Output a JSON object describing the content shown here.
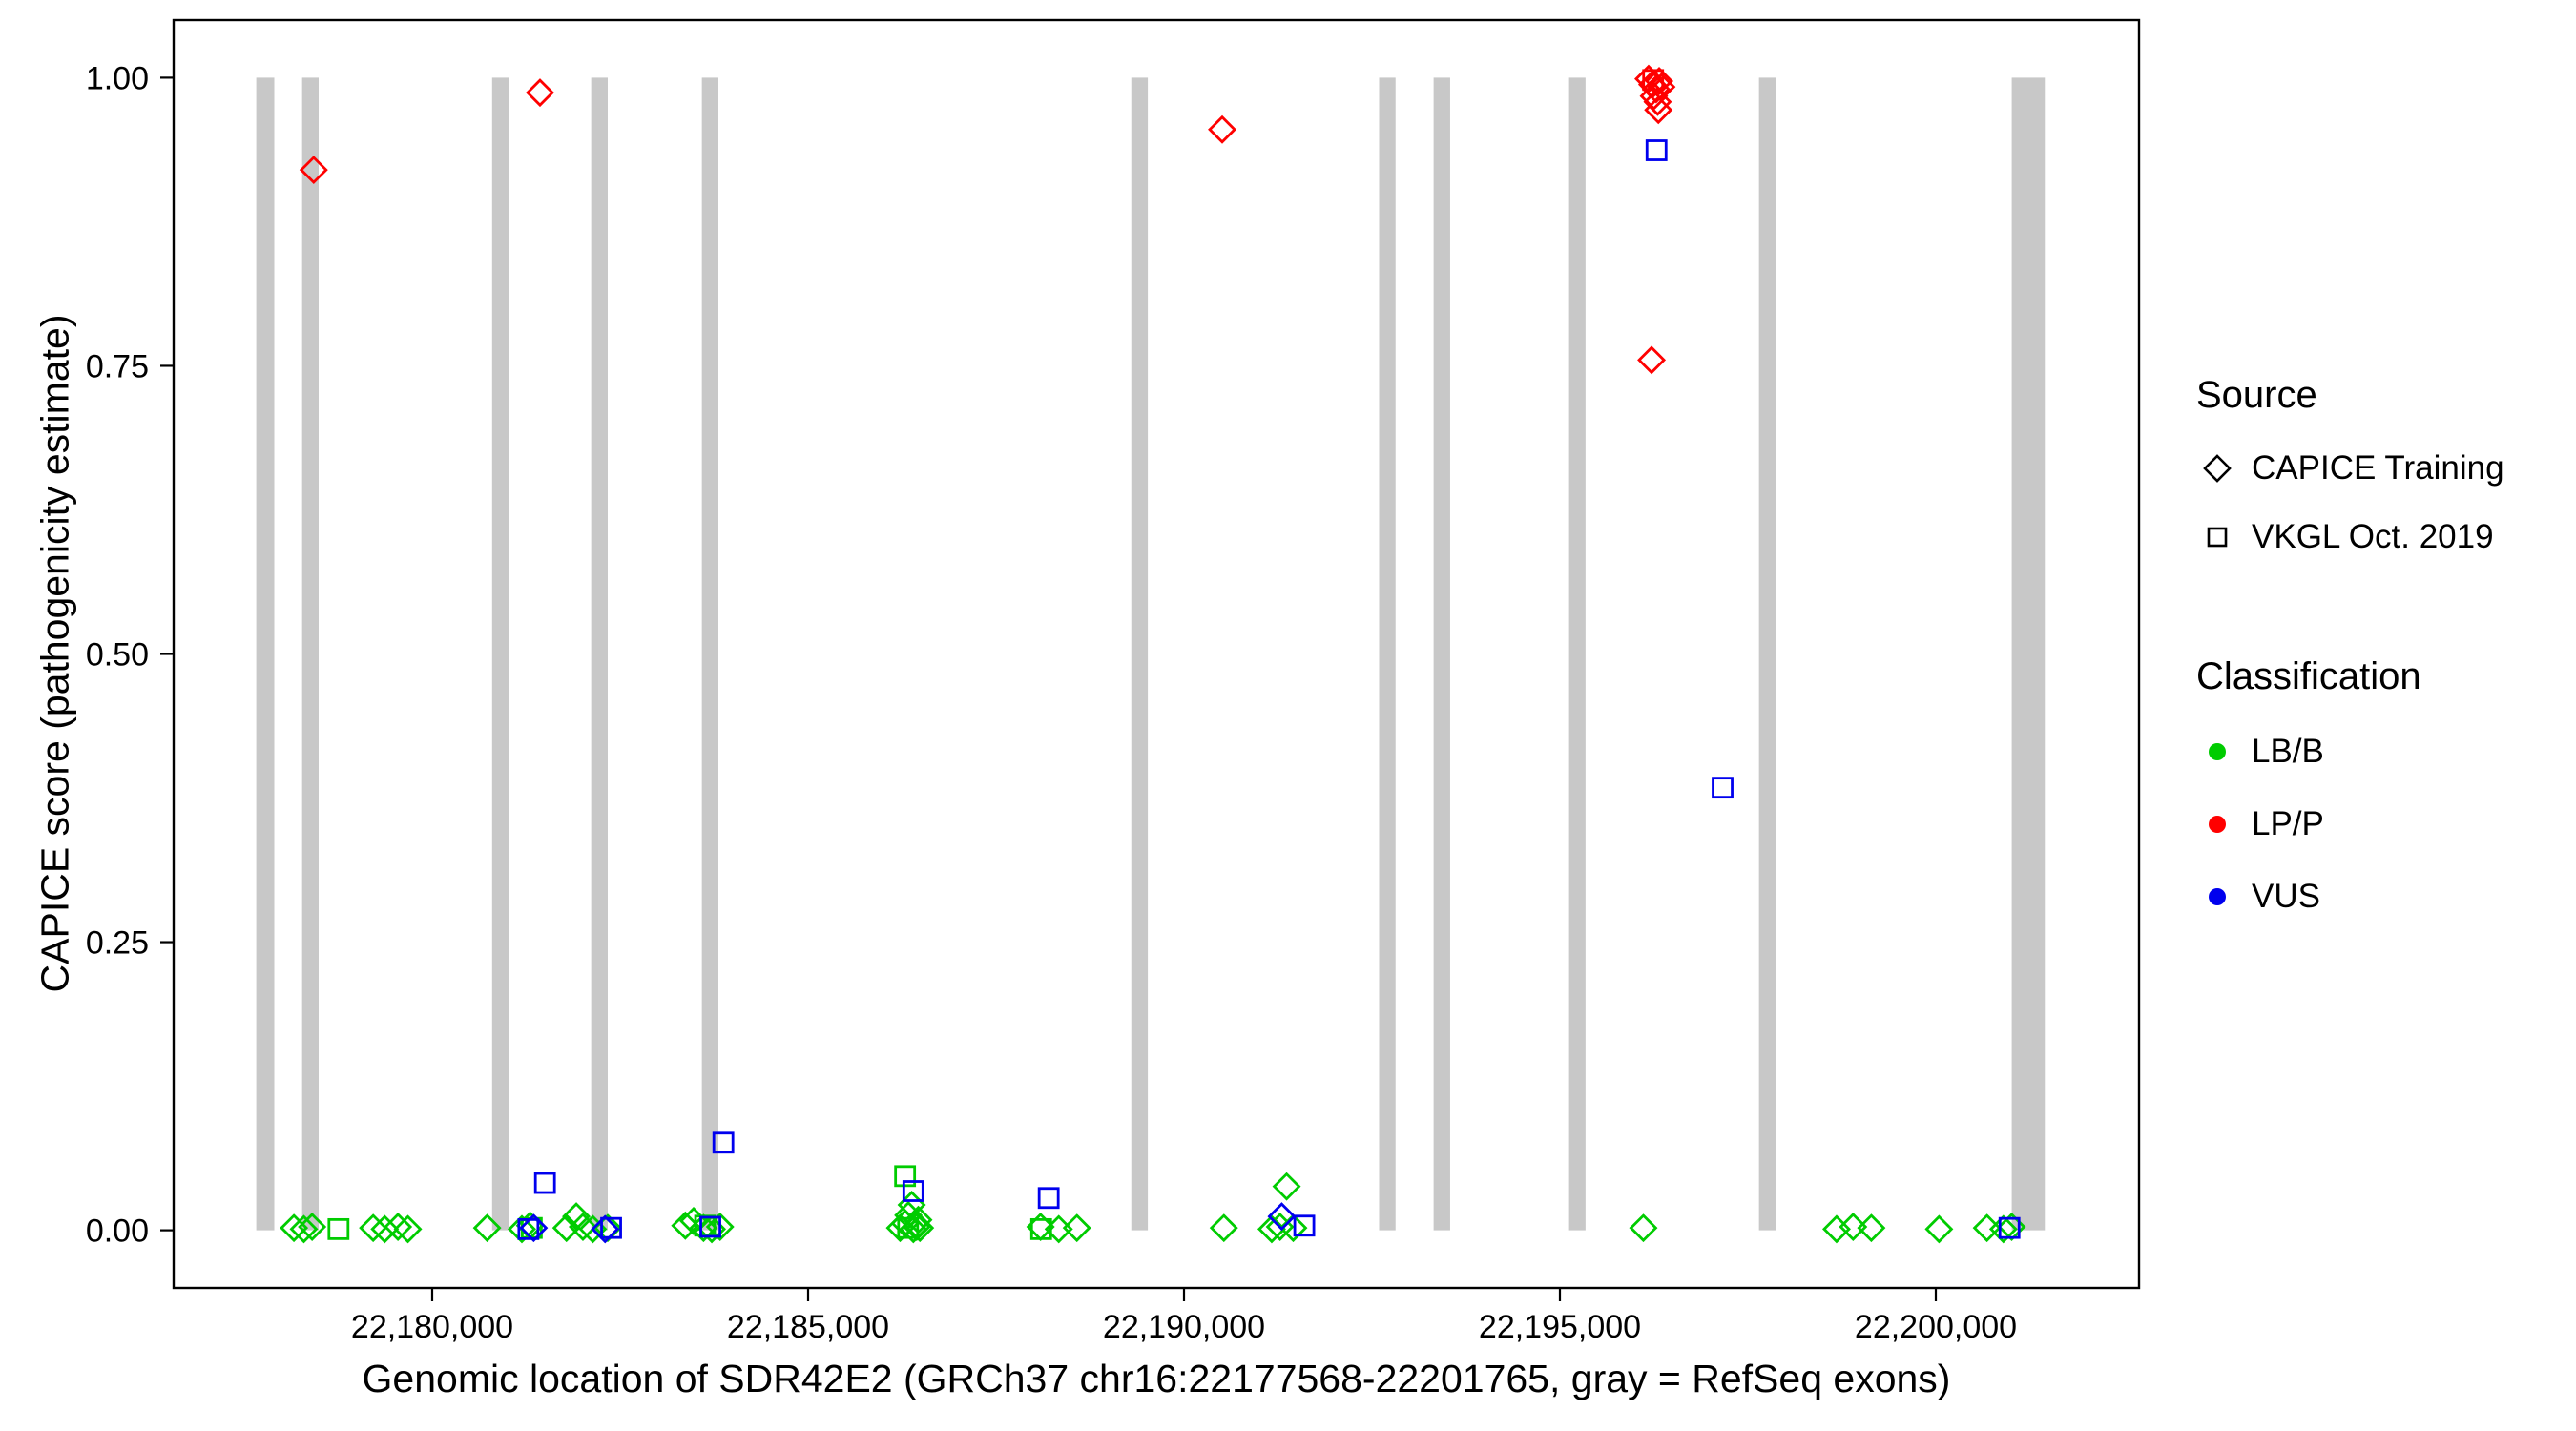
{
  "chart_data": {
    "type": "scatter",
    "title": "",
    "xlabel": "Genomic location of SDR42E2 (GRCh37 chr16:22177568-22201765, gray = RefSeq exons)",
    "ylabel": "CAPICE score (pathogenicity estimate)",
    "xlim": [
      22176561,
      22202703
    ],
    "ylim": [
      -0.05,
      1.05
    ],
    "grid": "off",
    "x_ticks": [
      {
        "value": 22180000,
        "label": "22,180,000"
      },
      {
        "value": 22185000,
        "label": "22,185,000"
      },
      {
        "value": 22190000,
        "label": "22,190,000"
      },
      {
        "value": 22195000,
        "label": "22,195,000"
      },
      {
        "value": 22200000,
        "label": "22,200,000"
      }
    ],
    "y_ticks": [
      {
        "value": 0.0,
        "label": "0.00"
      },
      {
        "value": 0.25,
        "label": "0.25"
      },
      {
        "value": 0.5,
        "label": "0.50"
      },
      {
        "value": 0.75,
        "label": "0.75"
      },
      {
        "value": 1.0,
        "label": "1.00"
      }
    ],
    "exons": [
      [
        22177660,
        22177900
      ],
      [
        22178270,
        22178490
      ],
      [
        22180797,
        22181017
      ],
      [
        22182115,
        22182335
      ],
      [
        22183587,
        22183807
      ],
      [
        22189299,
        22189519
      ],
      [
        22192595,
        22192814
      ],
      [
        22193320,
        22193540
      ],
      [
        22195122,
        22195341
      ],
      [
        22197648,
        22197868
      ],
      [
        22201010,
        22201450
      ]
    ],
    "series": [
      {
        "name": "LB/B - CAPICE Training",
        "source": "CAPICE Training",
        "classification": "LB/B",
        "shape": "diamond",
        "color": "#00CC00",
        "points": [
          [
            22178161,
            0.002
          ],
          [
            22178293,
            0.001
          ],
          [
            22178403,
            0.003
          ],
          [
            22179215,
            0.002
          ],
          [
            22179369,
            0.001
          ],
          [
            22179545,
            0.003
          ],
          [
            22179677,
            0.001
          ],
          [
            22180731,
            0.002
          ],
          [
            22181193,
            0.001
          ],
          [
            22181302,
            0.004
          ],
          [
            22181786,
            0.002
          ],
          [
            22181917,
            0.012
          ],
          [
            22182005,
            0.003
          ],
          [
            22182137,
            0.001
          ],
          [
            22182335,
            0.002
          ],
          [
            22183367,
            0.004
          ],
          [
            22183477,
            0.008
          ],
          [
            22183609,
            0.002
          ],
          [
            22183719,
            0.001
          ],
          [
            22183829,
            0.003
          ],
          [
            22186224,
            0.002
          ],
          [
            22186290,
            0.006
          ],
          [
            22186334,
            0.013
          ],
          [
            22186378,
            0.022
          ],
          [
            22186400,
            0.001
          ],
          [
            22186444,
            0.003
          ],
          [
            22186466,
            0.009
          ],
          [
            22186488,
            0.002
          ],
          [
            22188092,
            0.003
          ],
          [
            22188334,
            0.001
          ],
          [
            22188575,
            0.002
          ],
          [
            22190530,
            0.002
          ],
          [
            22191167,
            0.001
          ],
          [
            22191277,
            0.003
          ],
          [
            22191365,
            0.038
          ],
          [
            22191453,
            0.002
          ],
          [
            22196110,
            0.002
          ],
          [
            22198680,
            0.001
          ],
          [
            22198900,
            0.003
          ],
          [
            22199142,
            0.002
          ],
          [
            22200043,
            0.001
          ],
          [
            22200680,
            0.002
          ],
          [
            22200899,
            0.001
          ],
          [
            22201009,
            0.003
          ]
        ]
      },
      {
        "name": "LB/B - VKGL Oct. 2019",
        "source": "VKGL Oct. 2019",
        "classification": "LB/B",
        "shape": "square",
        "color": "#00CC00",
        "points": [
          [
            22178754,
            0.001
          ],
          [
            22181325,
            0.002
          ],
          [
            22183630,
            0.004
          ],
          [
            22186290,
            0.047
          ],
          [
            22186330,
            0.002
          ],
          [
            22188100,
            0.001
          ]
        ]
      },
      {
        "name": "LP/P - CAPICE Training",
        "source": "CAPICE Training",
        "classification": "LP/P",
        "shape": "diamond",
        "color": "#FF0000",
        "points": [
          [
            22178424,
            0.92
          ],
          [
            22181434,
            0.987
          ],
          [
            22190508,
            0.955
          ],
          [
            22196180,
            0.999
          ],
          [
            22196230,
            0.994
          ],
          [
            22196280,
            0.99
          ],
          [
            22196320,
            0.997
          ],
          [
            22196250,
            0.984
          ],
          [
            22196300,
            0.979
          ],
          [
            22196350,
            0.992
          ],
          [
            22196310,
            0.972
          ],
          [
            22196219,
            0.755
          ]
        ]
      },
      {
        "name": "LP/P - VKGL Oct. 2019",
        "source": "VKGL Oct. 2019",
        "classification": "LP/P",
        "shape": "square",
        "color": "#FF0000",
        "points": [
          [
            22196240,
            0.998
          ]
        ]
      },
      {
        "name": "VUS - CAPICE Training",
        "source": "CAPICE Training",
        "classification": "VUS",
        "shape": "diamond",
        "color": "#0000EE",
        "points": [
          [
            22181350,
            0.002
          ],
          [
            22182300,
            0.001
          ],
          [
            22191300,
            0.012
          ]
        ]
      },
      {
        "name": "VUS - VKGL Oct. 2019",
        "source": "VKGL Oct. 2019",
        "classification": "VUS",
        "shape": "square",
        "color": "#0000EE",
        "points": [
          [
            22196285,
            0.937
          ],
          [
            22197164,
            0.384
          ],
          [
            22183873,
            0.076
          ],
          [
            22181500,
            0.041
          ],
          [
            22186400,
            0.034
          ],
          [
            22188200,
            0.028
          ],
          [
            22181280,
            0.001
          ],
          [
            22182380,
            0.002
          ],
          [
            22183700,
            0.003
          ],
          [
            22191600,
            0.004
          ],
          [
            22200980,
            0.002
          ]
        ]
      }
    ]
  },
  "legend": {
    "source": {
      "title": "Source",
      "items": [
        {
          "label": "CAPICE Training",
          "shape": "diamond"
        },
        {
          "label": "VKGL Oct. 2019",
          "shape": "square"
        }
      ]
    },
    "classification": {
      "title": "Classification",
      "items": [
        {
          "label": "LB/B",
          "color": "#00CC00"
        },
        {
          "label": "LP/P",
          "color": "#FF0000"
        },
        {
          "label": "VUS",
          "color": "#0000EE"
        }
      ]
    }
  },
  "colors": {
    "exon": "#C8C8C8",
    "panel_border": "#000000",
    "lbb": "#00CC00",
    "lpp": "#FF0000",
    "vus": "#0000EE"
  }
}
